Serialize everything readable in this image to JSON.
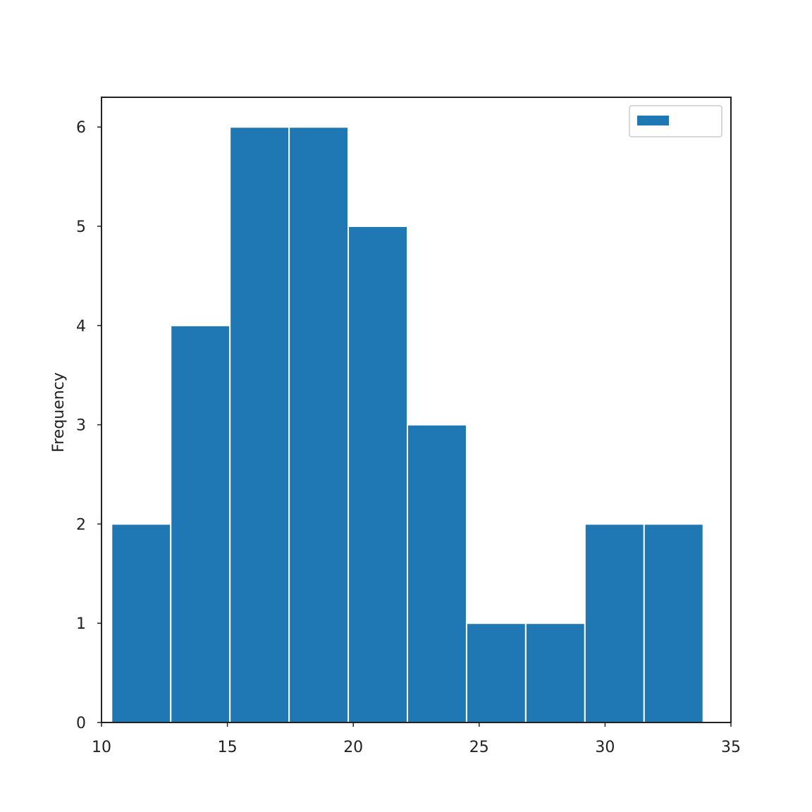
{
  "chart_data": {
    "type": "bar",
    "subtype": "histogram",
    "title": "",
    "xlabel": "",
    "ylabel": "Frequency",
    "xlim": [
      10,
      35
    ],
    "ylim": [
      0,
      6.3
    ],
    "xticks": [
      10,
      15,
      20,
      25,
      30,
      35
    ],
    "yticks": [
      0,
      1,
      2,
      3,
      4,
      5,
      6
    ],
    "bin_edges": [
      10.4,
      12.75,
      15.1,
      17.45,
      19.8,
      22.15,
      24.5,
      26.85,
      29.2,
      31.55,
      33.9
    ],
    "values": [
      2,
      4,
      6,
      6,
      5,
      3,
      1,
      1,
      2,
      2
    ],
    "series": [
      {
        "name": "",
        "color": "#1f77b4"
      }
    ],
    "legend": {
      "position": "top-right"
    },
    "grid": false,
    "colors": {
      "bar": "#1f77b4",
      "bar_edge": "#ffffff",
      "axes": "#222222",
      "legend_border": "#cccccc"
    }
  }
}
